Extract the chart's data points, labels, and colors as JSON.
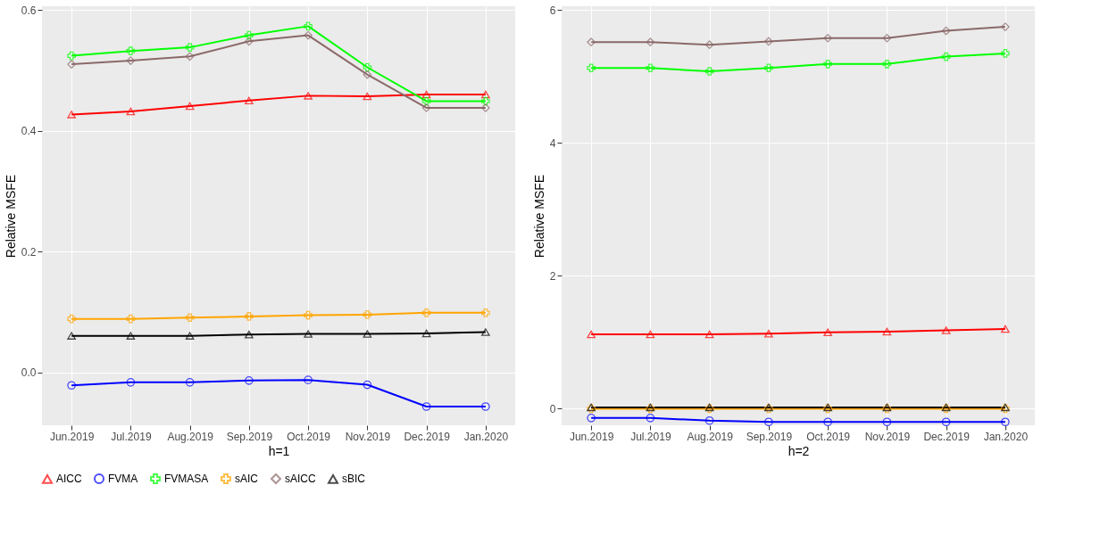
{
  "chart_data": [
    {
      "type": "line",
      "xlabel": "h=1",
      "ylabel": "Relative MSFE",
      "categories": [
        "Jun.2019",
        "Jul.2019",
        "Aug.2019",
        "Sep.2019",
        "Oct.2019",
        "Nov.2019",
        "Dec.2019",
        "Jan.2020"
      ],
      "ylim": [
        -0.087,
        0.606
      ],
      "yticks": [
        {
          "value": 0,
          "label": "0.0"
        },
        0.2,
        0.4,
        0.6
      ],
      "grid": true,
      "legend": "bottom",
      "line_style": "solid",
      "series": [
        {
          "name": "AICC",
          "color": "#ff0000",
          "marker": "triangle",
          "values": [
            0.427,
            0.432,
            0.441,
            0.45,
            0.458,
            0.457,
            0.46,
            0.46
          ]
        },
        {
          "name": "FVMA",
          "color": "#0000ff",
          "marker": "circle",
          "values": [
            -0.021,
            -0.016,
            -0.016,
            -0.013,
            -0.012,
            -0.02,
            -0.056,
            -0.056
          ]
        },
        {
          "name": "FVMASA",
          "color": "#00ff00",
          "marker": "cross",
          "values": [
            0.524,
            0.532,
            0.538,
            0.558,
            0.573,
            0.505,
            0.449,
            0.449
          ]
        },
        {
          "name": "sAIC",
          "color": "#ffa500",
          "marker": "cross",
          "values": [
            0.089,
            0.089,
            0.091,
            0.093,
            0.095,
            0.096,
            0.099,
            0.099
          ]
        },
        {
          "name": "sAICC",
          "color": "#8b6969",
          "marker": "diamond",
          "values": [
            0.51,
            0.516,
            0.523,
            0.548,
            0.558,
            0.493,
            0.438,
            0.438
          ]
        },
        {
          "name": "sBIC",
          "color": "#000000",
          "marker": "triangle",
          "values": [
            0.061,
            0.061,
            0.061,
            0.063,
            0.064,
            0.064,
            0.065,
            0.067
          ]
        }
      ]
    },
    {
      "type": "line",
      "xlabel": "h=2",
      "ylabel": "Relative MSFE",
      "categories": [
        "Jun.2019",
        "Jul.2019",
        "Aug.2019",
        "Sep.2019",
        "Oct.2019",
        "Nov.2019",
        "Dec.2019",
        "Jan.2020"
      ],
      "ylim": [
        -0.25,
        6.06
      ],
      "yticks": [
        0,
        2,
        4,
        6
      ],
      "grid": true,
      "legend": "bottom",
      "line_style": "solid",
      "series": [
        {
          "name": "AICC",
          "color": "#ff0000",
          "marker": "triangle",
          "values": [
            1.12,
            1.12,
            1.12,
            1.13,
            1.15,
            1.16,
            1.18,
            1.2
          ]
        },
        {
          "name": "FVMA",
          "color": "#0000ff",
          "marker": "circle",
          "values": [
            -0.14,
            -0.14,
            -0.18,
            -0.2,
            -0.2,
            -0.2,
            -0.2,
            -0.2
          ]
        },
        {
          "name": "FVMASA",
          "color": "#00ff00",
          "marker": "cross",
          "values": [
            5.13,
            5.13,
            5.08,
            5.13,
            5.19,
            5.19,
            5.3,
            5.35
          ]
        },
        {
          "name": "sAIC",
          "color": "#ffa500",
          "marker": "cross",
          "values": [
            0.0,
            0.0,
            0.0,
            0.0,
            0.0,
            0.0,
            0.0,
            0.0
          ]
        },
        {
          "name": "sAICC",
          "color": "#8b6969",
          "marker": "diamond",
          "values": [
            5.52,
            5.52,
            5.48,
            5.53,
            5.58,
            5.58,
            5.69,
            5.75
          ]
        },
        {
          "name": "sBIC",
          "color": "#000000",
          "marker": "triangle",
          "values": [
            0.02,
            0.02,
            0.02,
            0.02,
            0.02,
            0.02,
            0.02,
            0.02
          ]
        }
      ]
    }
  ]
}
